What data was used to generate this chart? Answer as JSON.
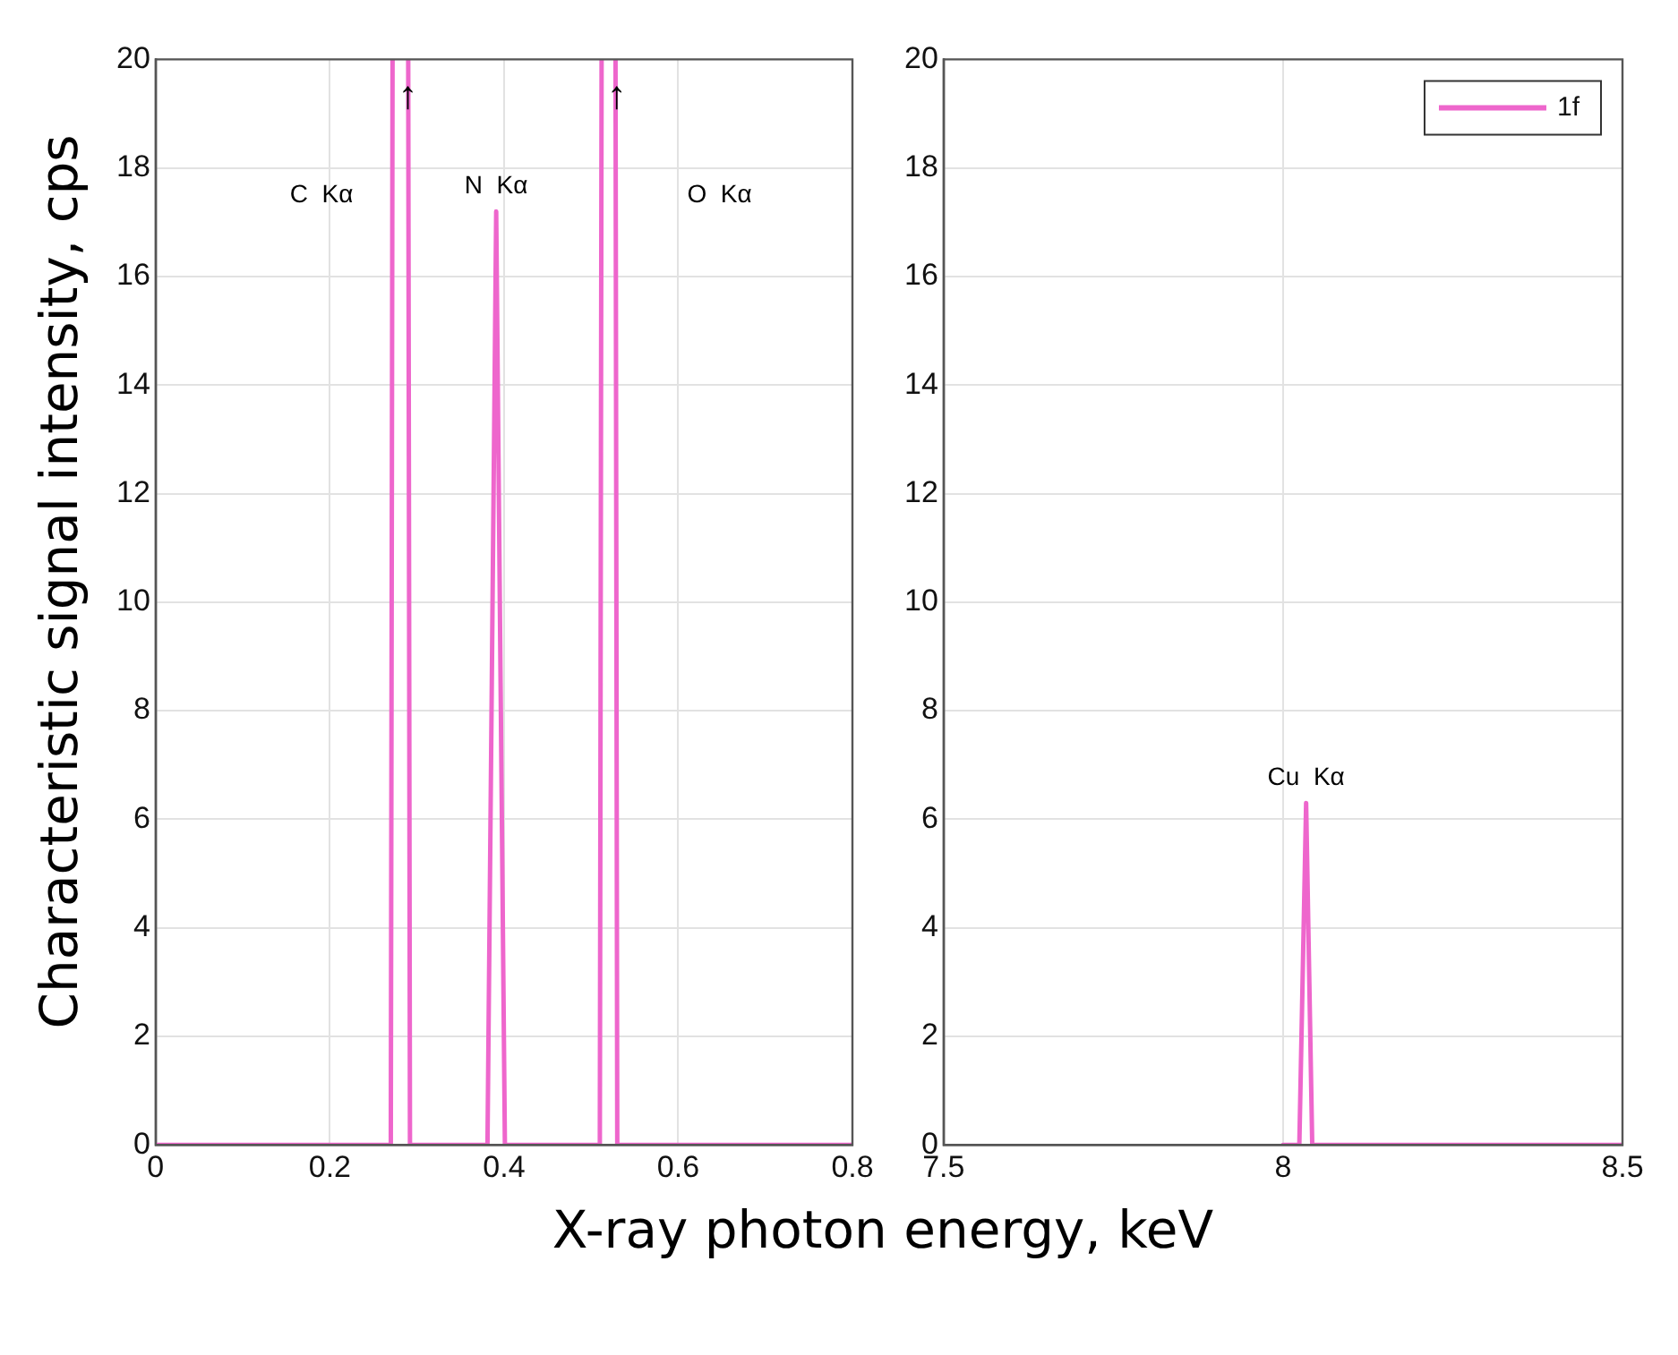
{
  "chart_data": [
    {
      "type": "line",
      "ylabel": "Characteristic signal intensity, cps",
      "xlabel": "X-ray photon energy, keV",
      "xlim": [
        0,
        0.8
      ],
      "xticks": [
        0,
        0.2,
        0.4,
        0.6,
        0.8
      ],
      "ylim": [
        0,
        20
      ],
      "yticks": [
        0,
        2,
        4,
        6,
        8,
        10,
        12,
        14,
        16,
        18,
        20
      ],
      "grid": true,
      "marker": "none",
      "line_style": "solid",
      "legend": false,
      "series": [
        {
          "color": "#ee66cc",
          "x": [
            0,
            0.27,
            0.272,
            0.281,
            0.29,
            0.292,
            0.381,
            0.391,
            0.401,
            0.51,
            0.512,
            0.52,
            0.528,
            0.53,
            0.8
          ],
          "values": [
            0,
            0,
            20,
            null,
            20,
            0,
            0,
            17.2,
            0,
            0,
            20,
            null,
            20,
            0,
            0
          ]
        }
      ],
      "annotations": [
        "C  Kα",
        {
          "text": "N  Kα",
          "x": 0.391,
          "y": 17.2
        },
        "O  Kα",
        {
          "text": "↑",
          "x": 0.272,
          "y": 20
        },
        {
          "text": "↑",
          "x": 0.512,
          "y": 20
        }
      ]
    },
    {
      "type": "line",
      "xlim": [
        7.5,
        8.5
      ],
      "xticks": [
        7.5,
        8,
        8.5
      ],
      "ylim": [
        0,
        20
      ],
      "yticks": [
        0,
        2,
        4,
        6,
        8,
        10,
        12,
        14,
        16,
        18,
        20
      ],
      "grid": true,
      "marker": "none",
      "line_style": "solid",
      "legend": "top right",
      "series": [
        {
          "name": "1f",
          "color": "#ee66cc",
          "x": [
            8.0,
            8.024,
            8.034,
            8.043,
            8.5
          ],
          "values": [
            0,
            0,
            6.3,
            0,
            0
          ]
        }
      ],
      "annotations": [
        {
          "text": "Cu  Kα",
          "x": 8.034,
          "y": 6.3
        }
      ]
    }
  ]
}
